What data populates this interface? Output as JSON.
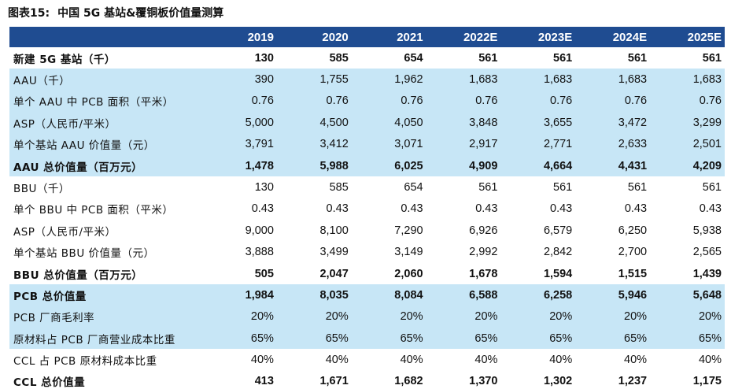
{
  "title": {
    "figure_no": "图表15:",
    "text": "中国 5G 基站&覆铜板价值量测算"
  },
  "columns": [
    "2019",
    "2020",
    "2021",
    "2022E",
    "2023E",
    "2024E",
    "2025E"
  ],
  "rows": [
    {
      "label": "新建 5G 基站（千）",
      "values": [
        "130",
        "585",
        "654",
        "561",
        "561",
        "561",
        "561"
      ]
    },
    {
      "label": "AAU（千）",
      "values": [
        "390",
        "1,755",
        "1,962",
        "1,683",
        "1,683",
        "1,683",
        "1,683"
      ]
    },
    {
      "label": "单个 AAU 中 PCB 面积（平米）",
      "values": [
        "0.76",
        "0.76",
        "0.76",
        "0.76",
        "0.76",
        "0.76",
        "0.76"
      ]
    },
    {
      "label": "ASP（人民币/平米）",
      "values": [
        "5,000",
        "4,500",
        "4,050",
        "3,848",
        "3,655",
        "3,472",
        "3,299"
      ]
    },
    {
      "label": "单个基站 AAU 价值量（元）",
      "values": [
        "3,791",
        "3,412",
        "3,071",
        "2,917",
        "2,771",
        "2,633",
        "2,501"
      ]
    },
    {
      "label": "AAU 总价值量（百万元）",
      "values": [
        "1,478",
        "5,988",
        "6,025",
        "4,909",
        "4,664",
        "4,431",
        "4,209"
      ]
    },
    {
      "label": "BBU（千）",
      "values": [
        "130",
        "585",
        "654",
        "561",
        "561",
        "561",
        "561"
      ]
    },
    {
      "label": "单个 BBU 中 PCB 面积（平米）",
      "values": [
        "0.43",
        "0.43",
        "0.43",
        "0.43",
        "0.43",
        "0.43",
        "0.43"
      ]
    },
    {
      "label": "ASP（人民币/平米）",
      "values": [
        "9,000",
        "8,100",
        "7,290",
        "6,926",
        "6,579",
        "6,250",
        "5,938"
      ]
    },
    {
      "label": "单个基站 BBU 价值量（元）",
      "values": [
        "3,888",
        "3,499",
        "3,149",
        "2,992",
        "2,842",
        "2,700",
        "2,565"
      ]
    },
    {
      "label": "BBU 总价值量（百万元）",
      "values": [
        "505",
        "2,047",
        "2,060",
        "1,678",
        "1,594",
        "1,515",
        "1,439"
      ]
    },
    {
      "label": "PCB 总价值量",
      "values": [
        "1,984",
        "8,035",
        "8,084",
        "6,588",
        "6,258",
        "5,946",
        "5,648"
      ]
    },
    {
      "label": "PCB 厂商毛利率",
      "values": [
        "20%",
        "20%",
        "20%",
        "20%",
        "20%",
        "20%",
        "20%"
      ]
    },
    {
      "label": "原材料占 PCB 厂商营业成本比重",
      "values": [
        "65%",
        "65%",
        "65%",
        "65%",
        "65%",
        "65%",
        "65%"
      ]
    },
    {
      "label": "CCL 占 PCB 原材料成本比重",
      "values": [
        "40%",
        "40%",
        "40%",
        "40%",
        "40%",
        "40%",
        "40%"
      ]
    },
    {
      "label": "CCL 总价值量",
      "values": [
        "413",
        "1,671",
        "1,682",
        "1,370",
        "1,302",
        "1,237",
        "1,175"
      ]
    }
  ],
  "colors": {
    "header_bg": "#1f4c91",
    "shade_bg": "#c7e6f6"
  }
}
